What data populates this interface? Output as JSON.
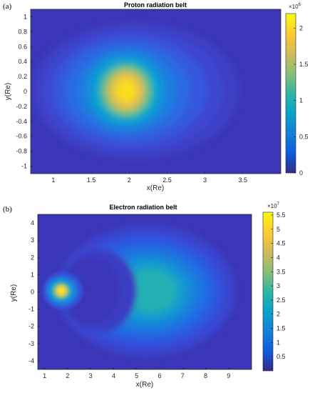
{
  "panels": [
    {
      "label": "(a)",
      "title": "Proton radiation belt",
      "xlabel": "x(Re)",
      "ylabel": "y(Re)",
      "colorbar": {
        "multiplier": "×10",
        "exponent": "6",
        "ticks": [
          "0",
          "0.5",
          "1",
          "1.5",
          "2"
        ]
      }
    },
    {
      "label": "(b)",
      "title": "Electron radiation belt",
      "xlabel": "x(Re)",
      "ylabel": "y(Re)",
      "colorbar": {
        "multiplier": "×10",
        "exponent": "7",
        "ticks": [
          "0.5",
          "1",
          "1.5",
          "2",
          "2.5",
          "3",
          "3.5",
          "4",
          "4.5",
          "5",
          "5.5"
        ]
      }
    }
  ],
  "chart_data": [
    {
      "type": "heatmap",
      "title": "Proton radiation belt",
      "xlabel": "x(Re)",
      "ylabel": "y(Re)",
      "xlim": [
        0.7,
        4.0
      ],
      "ylim": [
        -1.1,
        1.1
      ],
      "xticks": [
        1,
        1.5,
        2,
        2.5,
        3,
        3.5
      ],
      "yticks": [
        -1,
        -0.8,
        -0.6,
        -0.4,
        -0.2,
        0,
        0.2,
        0.4,
        0.6,
        0.8,
        1
      ],
      "colormap": "parula",
      "clim": [
        0,
        2200000
      ],
      "colorbar_ticks": [
        0,
        0.5,
        1,
        1.5,
        2
      ],
      "colorbar_scale": 1000000,
      "peak": {
        "x": 2.0,
        "y": 0.0,
        "value": 2200000
      },
      "field_extent": {
        "x": [
          1.15,
          3.45
        ],
        "y": [
          -0.85,
          0.85
        ]
      }
    },
    {
      "type": "heatmap",
      "title": "Electron radiation belt",
      "xlabel": "x(Re)",
      "ylabel": "y(Re)",
      "xlim": [
        0.7,
        10.0
      ],
      "ylim": [
        -4.5,
        4.5
      ],
      "xticks": [
        1,
        2,
        3,
        4,
        5,
        6,
        7,
        8,
        9
      ],
      "yticks": [
        -4,
        -3,
        -2,
        -1,
        0,
        1,
        2,
        3,
        4
      ],
      "colormap": "parula",
      "clim": [
        0,
        56000000
      ],
      "colorbar_ticks": [
        0.5,
        1,
        1.5,
        2,
        2.5,
        3,
        3.5,
        4,
        4.5,
        5,
        5.5
      ],
      "colorbar_scale": 10000000,
      "inner_belt_peak": {
        "x": 1.7,
        "y": 0.0,
        "value": 56000000
      },
      "outer_belt_peak": {
        "x": 5.0,
        "y": 0.0,
        "value": 26000000
      }
    }
  ]
}
